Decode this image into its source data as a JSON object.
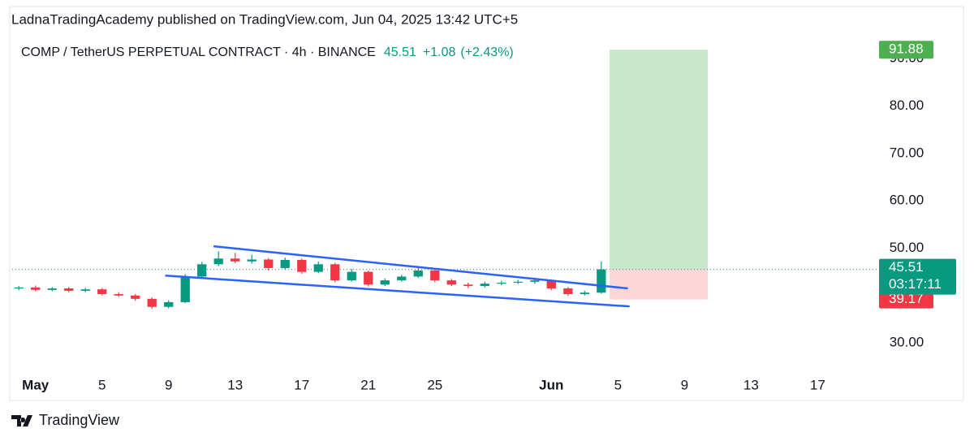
{
  "header": "LadnaTradingAcademy published on TradingView.com, Jun 04, 2025 13:42 UTC+5",
  "footer_logo": "TradingView",
  "chart_data": {
    "type": "candlestick",
    "title": "COMP / TetherUS PERPETUAL CONTRACT · 4h · BINANCE",
    "last_price": 45.51,
    "change": "+1.08",
    "change_pct": "(+2.43%)",
    "countdown": "03:17:11",
    "up_color": "#089981",
    "down_color": "#f23645",
    "x": [
      -1,
      0,
      1,
      2,
      3,
      4,
      5,
      6,
      7,
      8,
      9,
      10,
      11,
      12,
      13,
      14,
      15,
      16,
      17,
      18,
      19,
      20,
      21,
      22,
      23,
      24,
      25,
      26,
      27,
      28,
      29,
      30,
      31,
      32,
      33,
      34
    ],
    "open": [
      41.5,
      41.7,
      41.2,
      41.5,
      41.0,
      41.3,
      40.3,
      40.0,
      39.3,
      37.6,
      38.6,
      44.0,
      46.6,
      47.8,
      47.2,
      47.6,
      45.8,
      47.5,
      45.0,
      46.6,
      43.2,
      45.0,
      42.3,
      43.2,
      44.0,
      45.3,
      43.2,
      42.3,
      42.0,
      42.5,
      42.7,
      42.9,
      43.2,
      41.5,
      40.3,
      40.6
    ],
    "high": [
      42.0,
      42.1,
      41.8,
      41.8,
      41.6,
      41.6,
      40.7,
      40.3,
      39.6,
      39.0,
      44.5,
      47.1,
      49.3,
      49.0,
      48.6,
      47.9,
      48.0,
      47.8,
      47.2,
      46.9,
      45.6,
      45.3,
      43.6,
      44.4,
      45.9,
      45.6,
      43.5,
      42.7,
      42.9,
      43.1,
      43.3,
      43.8,
      43.4,
      41.8,
      41.0,
      47.2
    ],
    "low": [
      41.1,
      40.9,
      40.9,
      40.7,
      40.7,
      40.0,
      39.7,
      38.9,
      37.2,
      37.3,
      38.4,
      43.6,
      46.2,
      46.8,
      46.7,
      45.3,
      45.4,
      44.6,
      44.7,
      42.8,
      42.9,
      41.9,
      42.0,
      42.9,
      43.7,
      42.8,
      42.0,
      41.6,
      41.7,
      42.2,
      42.4,
      42.5,
      41.1,
      39.9,
      40.0,
      40.4
    ],
    "close": [
      41.7,
      41.2,
      41.5,
      41.0,
      41.3,
      40.3,
      40.0,
      39.3,
      37.6,
      38.6,
      44.0,
      46.6,
      47.8,
      47.2,
      47.6,
      45.8,
      47.5,
      45.0,
      46.6,
      43.2,
      45.0,
      42.3,
      43.2,
      44.0,
      45.3,
      43.2,
      42.3,
      42.0,
      42.5,
      42.7,
      42.9,
      43.2,
      41.5,
      40.3,
      40.6,
      45.51
    ],
    "xlim": [
      -1.4,
      50.3
    ],
    "xticks": [
      {
        "value": 0,
        "label": "May"
      },
      {
        "value": 4,
        "label": "5"
      },
      {
        "value": 8,
        "label": "9"
      },
      {
        "value": 12,
        "label": "13"
      },
      {
        "value": 16,
        "label": "17"
      },
      {
        "value": 20,
        "label": "21"
      },
      {
        "value": 24,
        "label": "25"
      },
      {
        "value": 31,
        "label": "Jun"
      },
      {
        "value": 35,
        "label": "5"
      },
      {
        "value": 39,
        "label": "9"
      },
      {
        "value": 43,
        "label": "13"
      },
      {
        "value": 47,
        "label": "17"
      }
    ],
    "ylim": [
      23.5,
      95
    ],
    "yticks": [
      {
        "value": 30,
        "label": "30.00"
      },
      {
        "value": 50,
        "label": "50.00"
      },
      {
        "value": 60,
        "label": "60.00"
      },
      {
        "value": 70,
        "label": "70.00"
      },
      {
        "value": 80,
        "label": "80.00"
      },
      {
        "value": 90,
        "label": "90.00"
      }
    ],
    "trendline_color": "#2962ff",
    "trendlines": [
      {
        "x": [
          10.7,
          35.6
        ],
        "y": [
          50.4,
          41.5
        ]
      },
      {
        "x": [
          7.8,
          35.7
        ],
        "y": [
          44.2,
          37.7
        ]
      }
    ],
    "position": {
      "x": [
        34.5,
        40.4
      ],
      "entry": 45.51,
      "target": 91.88,
      "stop": 39.17
    }
  }
}
